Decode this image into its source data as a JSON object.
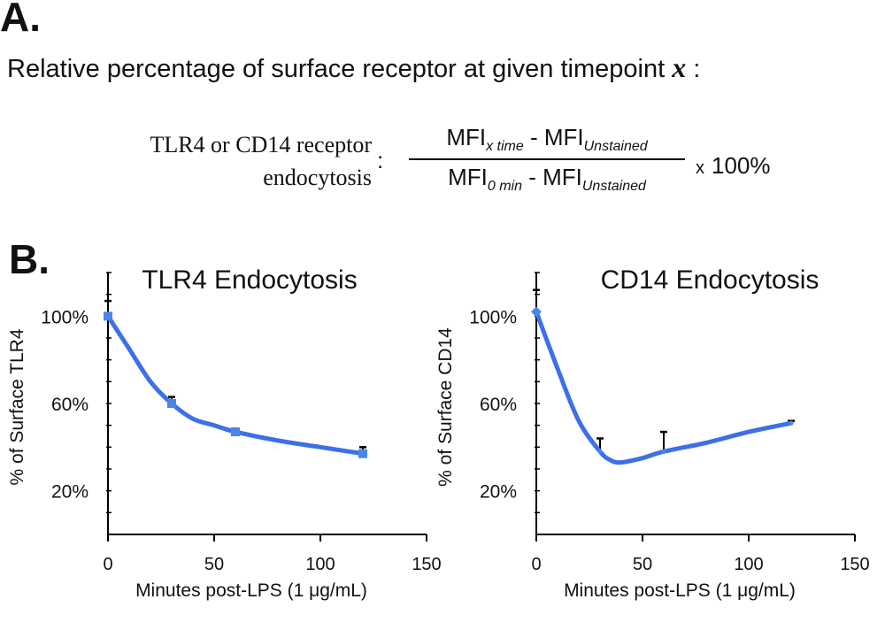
{
  "panel_a": {
    "letter": "A.",
    "intro_text": "Relative percentage of surface receptor at given timepoint",
    "intro_variable": "x",
    "intro_suffix": " :",
    "lhs_line1": "TLR4 or CD14 receptor",
    "lhs_line2": "endocytosis",
    "colon": ":",
    "numerator_main": "MFI",
    "numerator_sub1": "x time",
    "numerator_mid": " - MFI",
    "numerator_sub2": "Unstained",
    "denominator_main": "MFI",
    "denominator_sub1": "0 min",
    "denominator_mid": " - MFI",
    "denominator_sub2": "Unstained",
    "times_symbol": "x",
    "times_value": "100%"
  },
  "panel_b": {
    "letter": "B."
  },
  "colors": {
    "line": "#3d6fe8",
    "marker": "#4a86e8",
    "axis": "#000000"
  },
  "chart_data": [
    {
      "type": "line",
      "title": "TLR4 Endocytosis",
      "xlabel": "Minutes post-LPS (1 μg/mL)",
      "ylabel": "% of Surface TLR4",
      "xlim": [
        0,
        150
      ],
      "ylim": [
        0,
        120
      ],
      "x_ticks": [
        0,
        50,
        100,
        150
      ],
      "x_tick_labels": [
        "0",
        "50",
        "100",
        "150"
      ],
      "y_ticks": [
        20,
        60,
        100
      ],
      "y_tick_labels": [
        "20%",
        "60%",
        "100%"
      ],
      "grid": false,
      "marker": "square",
      "x": [
        0,
        30,
        60,
        120
      ],
      "y": [
        100,
        60,
        47,
        37
      ],
      "error_upper": [
        7,
        3,
        1.5,
        3
      ],
      "curve_x": [
        0,
        10,
        20,
        30,
        40,
        50,
        60,
        80,
        100,
        120
      ],
      "curve_y": [
        100,
        85,
        70,
        60,
        53,
        50,
        47,
        43,
        40,
        37
      ]
    },
    {
      "type": "line",
      "title": "CD14 Endocytosis",
      "xlabel": "Minutes post-LPS (1 μg/mL)",
      "ylabel": "% of Surface CD14",
      "xlim": [
        0,
        150
      ],
      "ylim": [
        0,
        120
      ],
      "x_ticks": [
        0,
        50,
        100,
        150
      ],
      "x_tick_labels": [
        "0",
        "50",
        "100",
        "150"
      ],
      "y_ticks": [
        20,
        60,
        100
      ],
      "y_tick_labels": [
        "20%",
        "60%",
        "100%"
      ],
      "grid": false,
      "marker": "diamond",
      "x": [
        0,
        30,
        60,
        120
      ],
      "y": [
        102,
        38,
        38,
        51
      ],
      "error_upper": [
        10,
        6,
        9,
        1
      ],
      "curve_x": [
        0,
        10,
        20,
        30,
        35,
        40,
        50,
        60,
        80,
        100,
        120
      ],
      "curve_y": [
        102,
        76,
        52,
        38,
        34,
        33,
        35,
        38,
        42,
        47,
        51
      ]
    }
  ]
}
